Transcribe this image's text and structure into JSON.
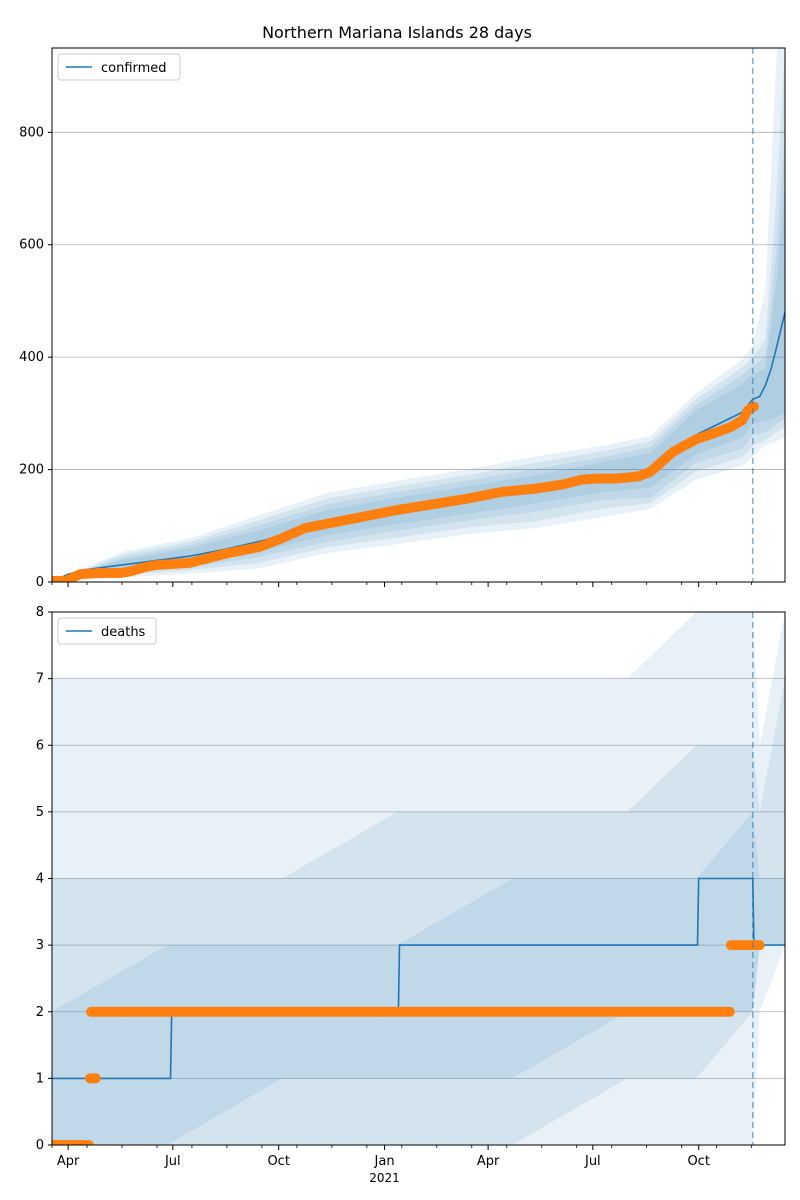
{
  "figure": {
    "title": "Northern Mariana Islands 28 days"
  },
  "colors": {
    "model": "#1f77b4",
    "observed": "#ff7f0e",
    "band": "#1f77b4",
    "grid": "#b0b0b0"
  },
  "x_axis": {
    "ticks": [
      {
        "label": "Apr",
        "day": 14
      },
      {
        "label": "Jul",
        "day": 105
      },
      {
        "label": "Oct",
        "day": 197
      },
      {
        "label": "Jan",
        "day": 289
      },
      {
        "label": "Apr",
        "day": 379
      },
      {
        "label": "Jul",
        "day": 470
      },
      {
        "label": "Oct",
        "day": 562
      }
    ],
    "year_label": "2021",
    "year_label_day": 289,
    "range_days": [
      0,
      637
    ],
    "forecast_day": 609
  },
  "chart_data": [
    {
      "type": "line",
      "panel": "confirmed",
      "legend": "confirmed",
      "legend_position": "top-left",
      "ylim": [
        0,
        950
      ],
      "yticks": [
        0,
        200,
        400,
        600,
        800
      ],
      "grid": true,
      "line": {
        "x": [
          0,
          14,
          30,
          60,
          90,
          120,
          150,
          180,
          210,
          240,
          270,
          300,
          330,
          360,
          390,
          420,
          450,
          480,
          500,
          520,
          540,
          560,
          580,
          600,
          609,
          615,
          620,
          625,
          630,
          637
        ],
        "y": [
          0,
          14,
          22,
          30,
          38,
          46,
          58,
          72,
          88,
          104,
          114,
          124,
          134,
          144,
          156,
          164,
          174,
          186,
          190,
          198,
          232,
          262,
          282,
          302,
          325,
          330,
          350,
          380,
          420,
          480
        ]
      },
      "bands": [
        {
          "x": [
            0,
            60,
            120,
            180,
            240,
            300,
            360,
            420,
            480,
            520,
            560,
            600,
            609,
            620,
            630,
            637
          ],
          "lower": [
            0,
            25,
            34,
            54,
            84,
            103,
            121,
            140,
            160,
            168,
            227,
            257,
            282,
            286,
            294,
            300
          ],
          "upper": [
            0,
            39,
            60,
            92,
            129,
            150,
            170,
            190,
            214,
            230,
            306,
            353,
            370,
            380,
            540,
            700
          ]
        },
        {
          "x": [
            0,
            60,
            120,
            180,
            240,
            300,
            360,
            420,
            480,
            520,
            560,
            600,
            609,
            620,
            630,
            637
          ],
          "lower": [
            0,
            19,
            27,
            44,
            72,
            91,
            109,
            125,
            146,
            150,
            212,
            237,
            262,
            266,
            282,
            290
          ],
          "upper": [
            0,
            43,
            66,
            101,
            139,
            160,
            180,
            201,
            223,
            240,
            316,
            368,
            385,
            400,
            600,
            800
          ]
        },
        {
          "x": [
            0,
            60,
            120,
            180,
            240,
            300,
            360,
            420,
            480,
            520,
            560,
            600,
            609,
            620,
            630,
            637
          ],
          "lower": [
            0,
            13,
            21,
            34,
            62,
            79,
            97,
            108,
            131,
            140,
            197,
            222,
            242,
            252,
            268,
            276
          ],
          "upper": [
            0,
            48,
            72,
            110,
            149,
            170,
            190,
            212,
            233,
            250,
            326,
            382,
            400,
            430,
            700,
            950
          ]
        },
        {
          "x": [
            0,
            60,
            120,
            180,
            240,
            300,
            360,
            420,
            480,
            520,
            560,
            600,
            609,
            620,
            630,
            637
          ],
          "lower": [
            0,
            8,
            15,
            24,
            52,
            67,
            85,
            96,
            116,
            130,
            182,
            207,
            222,
            244,
            250,
            260
          ],
          "upper": [
            0,
            53,
            78,
            119,
            159,
            180,
            200,
            223,
            243,
            260,
            336,
            396,
            420,
            520,
            950,
            950
          ]
        }
      ],
      "observed": {
        "x": [
          0,
          12,
          18,
          25,
          40,
          60,
          70,
          80,
          90,
          120,
          150,
          180,
          200,
          220,
          240,
          270,
          300,
          330,
          360,
          390,
          420,
          445,
          460,
          475,
          490,
          500,
          510,
          520,
          540,
          560,
          580,
          590,
          600,
          605,
          610
        ],
        "y": [
          2,
          2,
          8,
          14,
          16,
          16,
          20,
          26,
          30,
          34,
          50,
          62,
          78,
          96,
          104,
          116,
          128,
          138,
          148,
          160,
          166,
          174,
          182,
          184,
          184,
          186,
          188,
          196,
          232,
          254,
          268,
          276,
          288,
          306,
          312
        ]
      }
    },
    {
      "type": "line",
      "panel": "deaths",
      "legend": "deaths",
      "legend_position": "top-left",
      "ylim": [
        0,
        8
      ],
      "yticks": [
        0,
        1,
        2,
        3,
        4,
        5,
        6,
        7,
        8
      ],
      "grid": true,
      "line": {
        "x": [
          0,
          103,
          104,
          301,
          302,
          561,
          562,
          609,
          610,
          637
        ],
        "y": [
          1,
          1,
          2,
          2,
          3,
          3,
          4,
          4,
          3,
          3
        ]
      },
      "bands": [
        {
          "x": [
            0,
            100,
            200,
            300,
            400,
            500,
            560,
            609,
            615,
            637
          ],
          "lower": [
            0,
            0,
            1,
            1,
            1,
            2,
            2,
            2,
            3,
            3
          ],
          "upper": [
            2,
            3,
            3,
            3,
            4,
            4,
            4,
            5,
            4,
            4
          ]
        },
        {
          "x": [
            0,
            100,
            200,
            300,
            400,
            500,
            560,
            609,
            615,
            637
          ],
          "lower": [
            0,
            0,
            0,
            0,
            0,
            1,
            1,
            2,
            3,
            3
          ],
          "upper": [
            4,
            4,
            4,
            5,
            5,
            5,
            6,
            6,
            5,
            7
          ]
        },
        {
          "x": [
            0,
            100,
            200,
            300,
            400,
            500,
            560,
            609,
            615,
            637
          ],
          "lower": [
            0,
            0,
            0,
            0,
            0,
            0,
            0,
            0,
            2,
            3
          ],
          "upper": [
            7,
            7,
            7,
            7,
            7,
            7,
            8,
            8,
            6,
            8
          ]
        }
      ],
      "observed": {
        "x": [
          0,
          10,
          20,
          30,
          33,
          36,
          40,
          34,
          60,
          100,
          150,
          200,
          250,
          300,
          350,
          400,
          450,
          500,
          550,
          585,
          590,
          595,
          600,
          605,
          610,
          615
        ],
        "y": [
          0,
          0,
          0,
          0,
          1,
          1,
          2,
          2,
          2,
          2,
          2,
          2,
          2,
          2,
          2,
          2,
          2,
          2,
          2,
          2,
          3,
          3,
          3,
          3,
          3,
          3
        ]
      }
    }
  ]
}
